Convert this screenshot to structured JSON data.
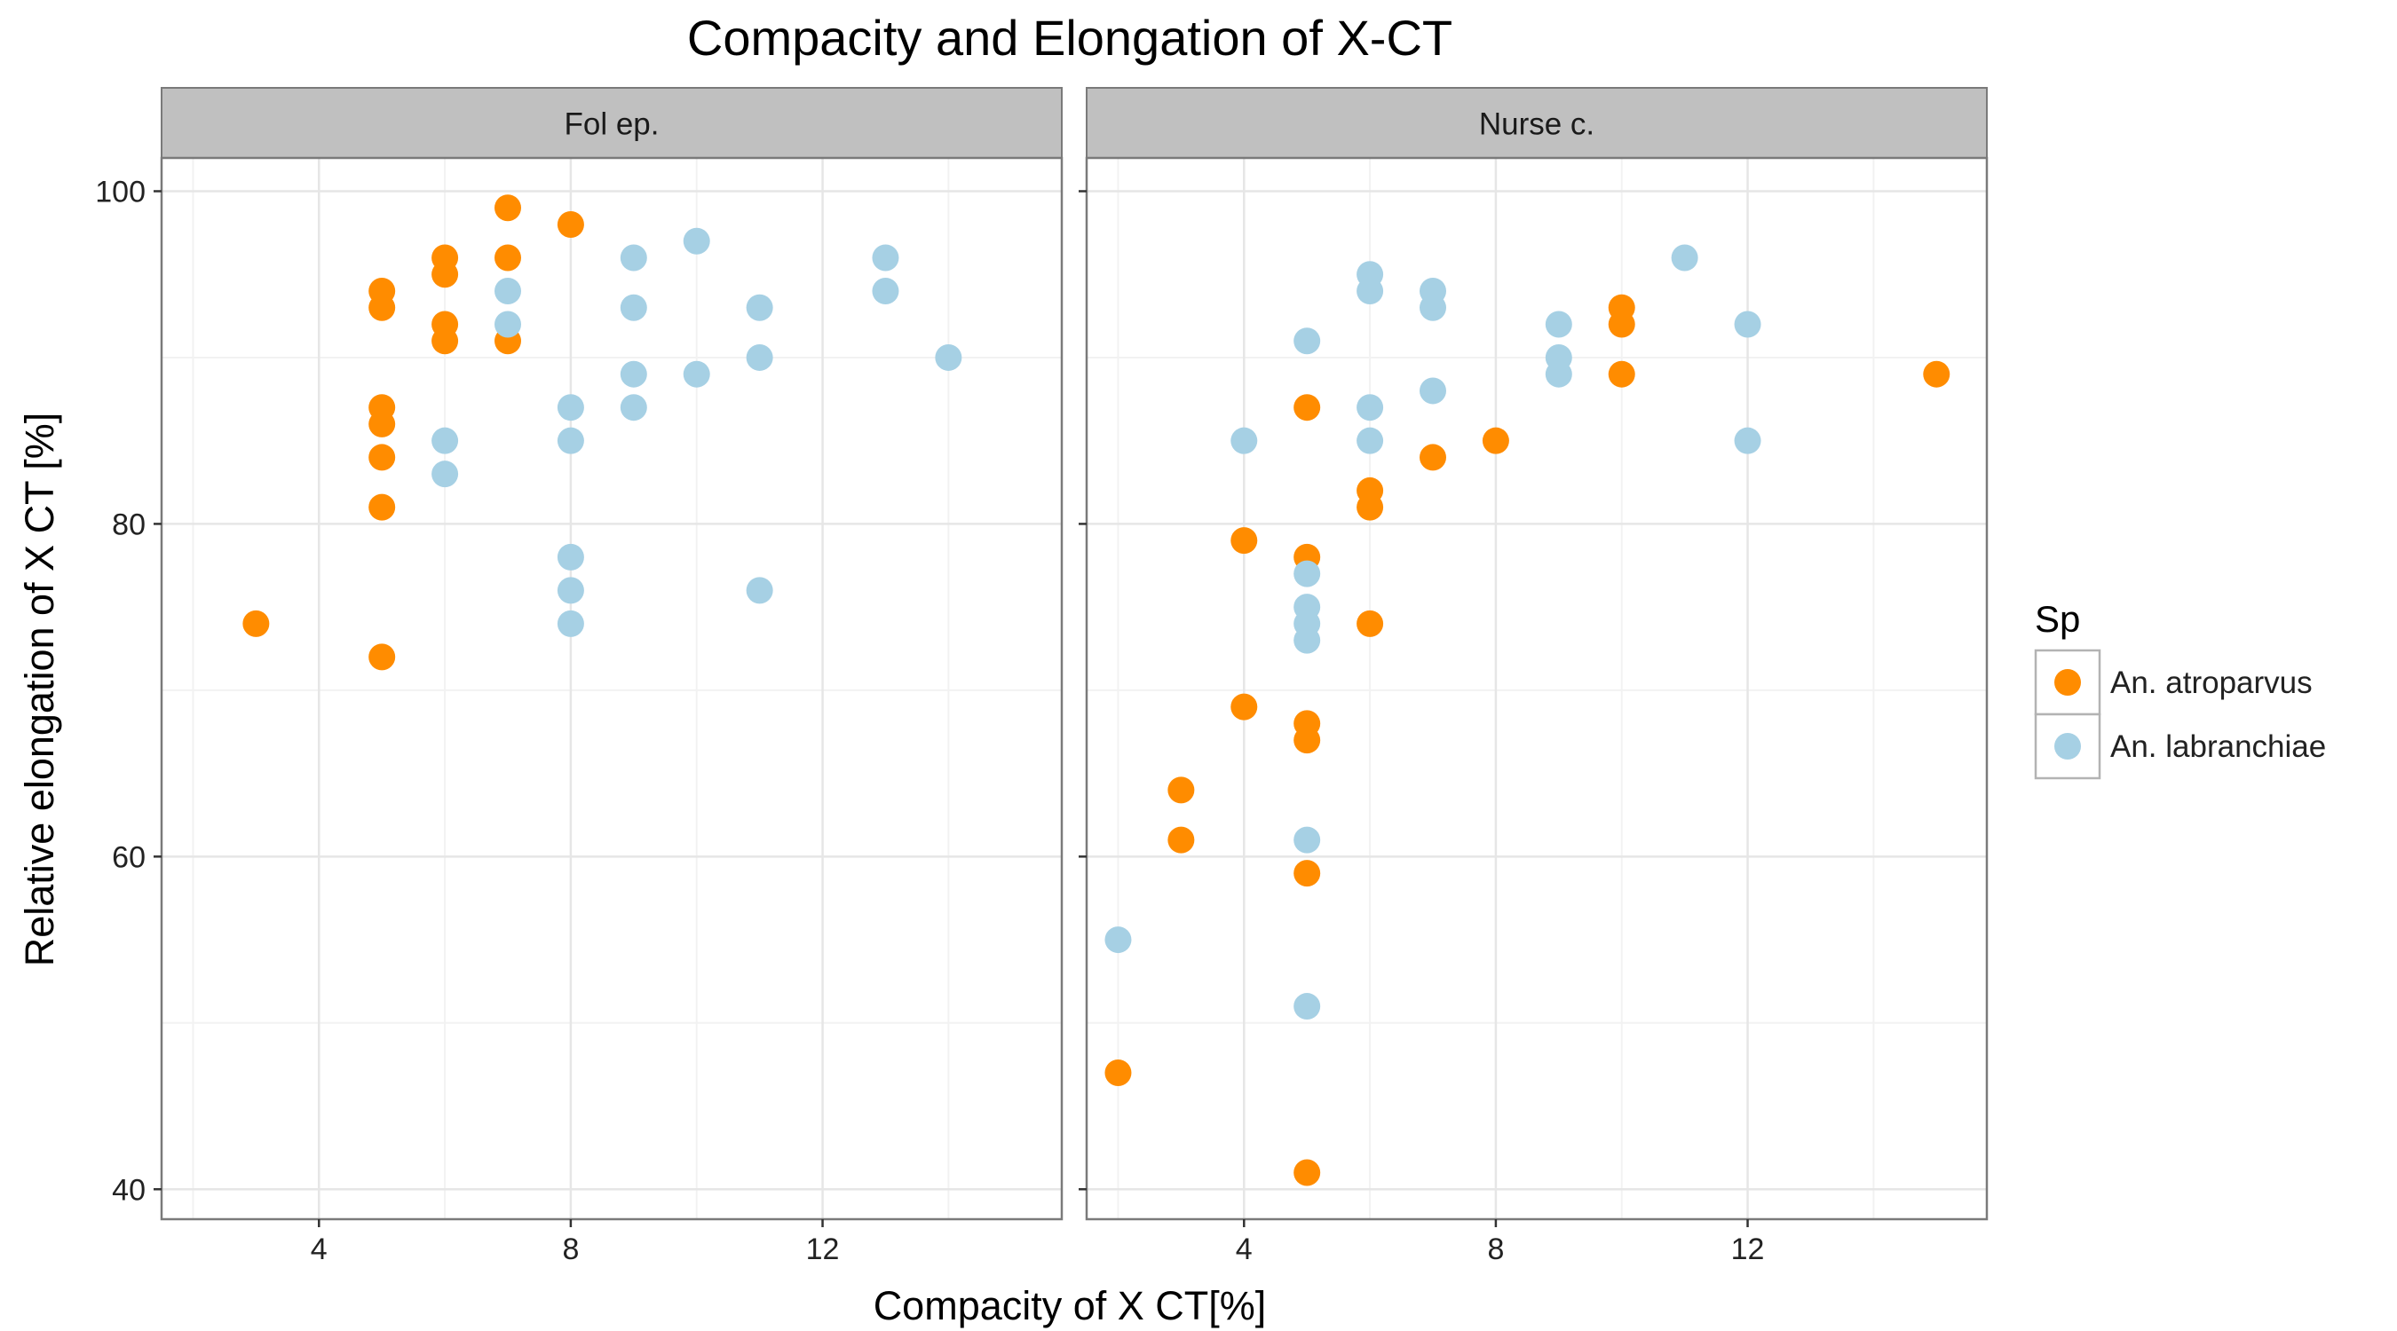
{
  "chart_data": {
    "type": "scatter",
    "title": "Compacity and Elongation of X-CT",
    "xlabel": "Compacity of X CT[%]",
    "ylabel": "Relative elongation of X CT [%]",
    "xlim": [
      1.5,
      15.8
    ],
    "ylim": [
      38.2,
      102
    ],
    "x_ticks": [
      4,
      8,
      12
    ],
    "y_ticks": [
      40,
      60,
      80,
      100
    ],
    "grid": true,
    "legend": {
      "title": "Sp",
      "position": "right",
      "entries": [
        "An. atroparvus",
        "An. labranchiae"
      ]
    },
    "colors": {
      "An. atroparvus": "#FF8C00",
      "An. labranchiae": "#A6D0E4",
      "strip_fill": "#C0C0C0",
      "panel_border": "#7a7a7a",
      "grid_major": "#e6e6e6",
      "grid_minor": "#f2f2f2"
    },
    "panels": [
      {
        "label": "Fol ep.",
        "series": [
          {
            "name": "An. atroparvus",
            "points": [
              [
                3,
                74
              ],
              [
                5,
                72
              ],
              [
                5,
                81
              ],
              [
                5,
                84
              ],
              [
                5,
                86
              ],
              [
                5,
                87
              ],
              [
                5,
                93
              ],
              [
                5,
                94
              ],
              [
                6,
                91
              ],
              [
                6,
                92
              ],
              [
                6,
                95
              ],
              [
                6,
                96
              ],
              [
                7,
                91
              ],
              [
                7,
                96
              ],
              [
                7,
                99
              ],
              [
                8,
                98
              ]
            ]
          },
          {
            "name": "An. labranchiae",
            "points": [
              [
                6,
                83
              ],
              [
                6,
                85
              ],
              [
                7,
                92
              ],
              [
                7,
                94
              ],
              [
                8,
                74
              ],
              [
                8,
                76
              ],
              [
                8,
                78
              ],
              [
                8,
                85
              ],
              [
                8,
                87
              ],
              [
                9,
                87
              ],
              [
                9,
                89
              ],
              [
                9,
                93
              ],
              [
                9,
                96
              ],
              [
                10,
                89
              ],
              [
                10,
                97
              ],
              [
                11,
                76
              ],
              [
                11,
                90
              ],
              [
                11,
                93
              ],
              [
                13,
                94
              ],
              [
                13,
                96
              ],
              [
                14,
                90
              ]
            ]
          }
        ]
      },
      {
        "label": "Nurse c.",
        "series": [
          {
            "name": "An. atroparvus",
            "points": [
              [
                2,
                47
              ],
              [
                3,
                61
              ],
              [
                3,
                64
              ],
              [
                4,
                69
              ],
              [
                4,
                79
              ],
              [
                5,
                41
              ],
              [
                5,
                59
              ],
              [
                5,
                67
              ],
              [
                5,
                68
              ],
              [
                5,
                78
              ],
              [
                5,
                87
              ],
              [
                6,
                74
              ],
              [
                6,
                81
              ],
              [
                6,
                82
              ],
              [
                7,
                84
              ],
              [
                8,
                85
              ],
              [
                10,
                89
              ],
              [
                10,
                92
              ],
              [
                10,
                93
              ],
              [
                15,
                89
              ]
            ]
          },
          {
            "name": "An. labranchiae",
            "points": [
              [
                2,
                55
              ],
              [
                4,
                85
              ],
              [
                5,
                51
              ],
              [
                5,
                61
              ],
              [
                5,
                73
              ],
              [
                5,
                74
              ],
              [
                5,
                75
              ],
              [
                5,
                77
              ],
              [
                5,
                91
              ],
              [
                6,
                85
              ],
              [
                6,
                87
              ],
              [
                6,
                94
              ],
              [
                6,
                95
              ],
              [
                7,
                88
              ],
              [
                7,
                93
              ],
              [
                7,
                94
              ],
              [
                9,
                89
              ],
              [
                9,
                90
              ],
              [
                9,
                92
              ],
              [
                11,
                96
              ],
              [
                12,
                85
              ],
              [
                12,
                92
              ]
            ]
          }
        ]
      }
    ]
  }
}
